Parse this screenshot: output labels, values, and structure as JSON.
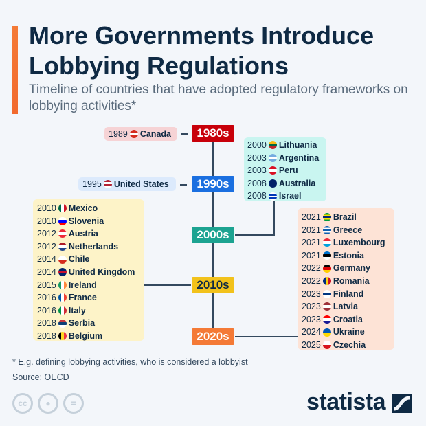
{
  "header": {
    "title": "More Governments Introduce Lobbying Regulations",
    "subtitle": "Timeline of countries that have adopted regulatory frameworks on lobbying activities*"
  },
  "decades": [
    {
      "label": "1980s",
      "color": "#c8000a",
      "text_color": "#ffffff"
    },
    {
      "label": "1990s",
      "color": "#1a6fe0",
      "text_color": "#ffffff"
    },
    {
      "label": "2000s",
      "color": "#1ca391",
      "text_color": "#ffffff"
    },
    {
      "label": "2010s",
      "color": "#f2c21b",
      "text_color": "#0f2a44"
    },
    {
      "label": "2020s",
      "color": "#f47a36",
      "text_color": "#ffffff"
    }
  ],
  "groups": {
    "1980s": {
      "bg": "#f6d3d5",
      "items": [
        {
          "year": "1989",
          "country": "Canada",
          "flag": [
            "#d52b1e",
            "#ffffff",
            "#d52b1e"
          ]
        }
      ]
    },
    "1990s": {
      "bg": "#dceafc",
      "items": [
        {
          "year": "1995",
          "country": "United States",
          "flag": [
            "#b22234",
            "#ffffff",
            "#b22234",
            "#ffffff"
          ]
        }
      ]
    },
    "2000s": {
      "bg": "#c9f5f0",
      "items": [
        {
          "year": "2000",
          "country": "Lithuania",
          "flag": [
            "#fdb913",
            "#006a44",
            "#c1272d"
          ]
        },
        {
          "year": "2003",
          "country": "Argentina",
          "flag": [
            "#74acdf",
            "#ffffff",
            "#74acdf"
          ]
        },
        {
          "year": "2003",
          "country": "Peru",
          "flag": [
            "#d91023",
            "#ffffff",
            "#d91023"
          ]
        },
        {
          "year": "2008",
          "country": "Australia",
          "flag": [
            "#012169",
            "#012169"
          ]
        },
        {
          "year": "2008",
          "country": "Israel",
          "flag": [
            "#ffffff",
            "#0038b8",
            "#ffffff",
            "#0038b8",
            "#ffffff"
          ]
        }
      ]
    },
    "2010s": {
      "bg": "#fdf3c8",
      "items": [
        {
          "year": "2010",
          "country": "Mexico",
          "flag": [
            "#006847",
            "#ffffff",
            "#ce1126"
          ],
          "vertical": true
        },
        {
          "year": "2010",
          "country": "Slovenia",
          "flag": [
            "#ffffff",
            "#0000ff",
            "#ff0000"
          ]
        },
        {
          "year": "2012",
          "country": "Austria",
          "flag": [
            "#ed2939",
            "#ffffff",
            "#ed2939"
          ]
        },
        {
          "year": "2012",
          "country": "Netherlands",
          "flag": [
            "#ae1c28",
            "#ffffff",
            "#21468b"
          ]
        },
        {
          "year": "2014",
          "country": "Chile",
          "flag": [
            "#ffffff",
            "#d52b1e"
          ]
        },
        {
          "year": "2014",
          "country": "United Kingdom",
          "flag": [
            "#012169",
            "#c8102e",
            "#012169"
          ]
        },
        {
          "year": "2015",
          "country": "Ireland",
          "flag": [
            "#169b62",
            "#ffffff",
            "#ff883e"
          ],
          "vertical": true
        },
        {
          "year": "2016",
          "country": "France",
          "flag": [
            "#0055a4",
            "#ffffff",
            "#ef4135"
          ],
          "vertical": true
        },
        {
          "year": "2016",
          "country": "Italy",
          "flag": [
            "#009246",
            "#ffffff",
            "#ce2b37"
          ],
          "vertical": true
        },
        {
          "year": "2018",
          "country": "Serbia",
          "flag": [
            "#c6363c",
            "#0c4076",
            "#ffffff"
          ]
        },
        {
          "year": "2018",
          "country": "Belgium",
          "flag": [
            "#000000",
            "#fdda24",
            "#ef3340"
          ],
          "vertical": true
        }
      ]
    },
    "2020s": {
      "bg": "#fde3d6",
      "items": [
        {
          "year": "2021",
          "country": "Brazil",
          "flag": [
            "#009c3b",
            "#ffdf00",
            "#002776",
            "#ffdf00",
            "#009c3b"
          ]
        },
        {
          "year": "2021",
          "country": "Greece",
          "flag": [
            "#0d5eaf",
            "#ffffff",
            "#0d5eaf",
            "#ffffff",
            "#0d5eaf"
          ]
        },
        {
          "year": "2021",
          "country": "Luxembourg",
          "flag": [
            "#ed2939",
            "#ffffff",
            "#00a1de"
          ]
        },
        {
          "year": "2021",
          "country": "Estonia",
          "flag": [
            "#0072ce",
            "#000000",
            "#ffffff"
          ]
        },
        {
          "year": "2022",
          "country": "Germany",
          "flag": [
            "#000000",
            "#dd0000",
            "#ffce00"
          ]
        },
        {
          "year": "2022",
          "country": "Romania",
          "flag": [
            "#002b7f",
            "#fcd116",
            "#ce1126"
          ],
          "vertical": true
        },
        {
          "year": "2023",
          "country": "Finland",
          "flag": [
            "#ffffff",
            "#003580",
            "#ffffff"
          ]
        },
        {
          "year": "2023",
          "country": "Latvia",
          "flag": [
            "#9e3039",
            "#ffffff",
            "#9e3039"
          ]
        },
        {
          "year": "2023",
          "country": "Croatia",
          "flag": [
            "#ff0000",
            "#ffffff",
            "#171796"
          ]
        },
        {
          "year": "2024",
          "country": "Ukraine",
          "flag": [
            "#0057b7",
            "#ffd700"
          ]
        },
        {
          "year": "2025",
          "country": "Czechia",
          "flag": [
            "#ffffff",
            "#d7141a"
          ]
        }
      ]
    }
  },
  "footer": {
    "note": "* E.g. defining lobbying activities, who is considered a lobbyist",
    "source": "Source: OECD",
    "logo": "statista",
    "license_icons": [
      "cc-icon",
      "by-icon",
      "nd-icon"
    ]
  }
}
